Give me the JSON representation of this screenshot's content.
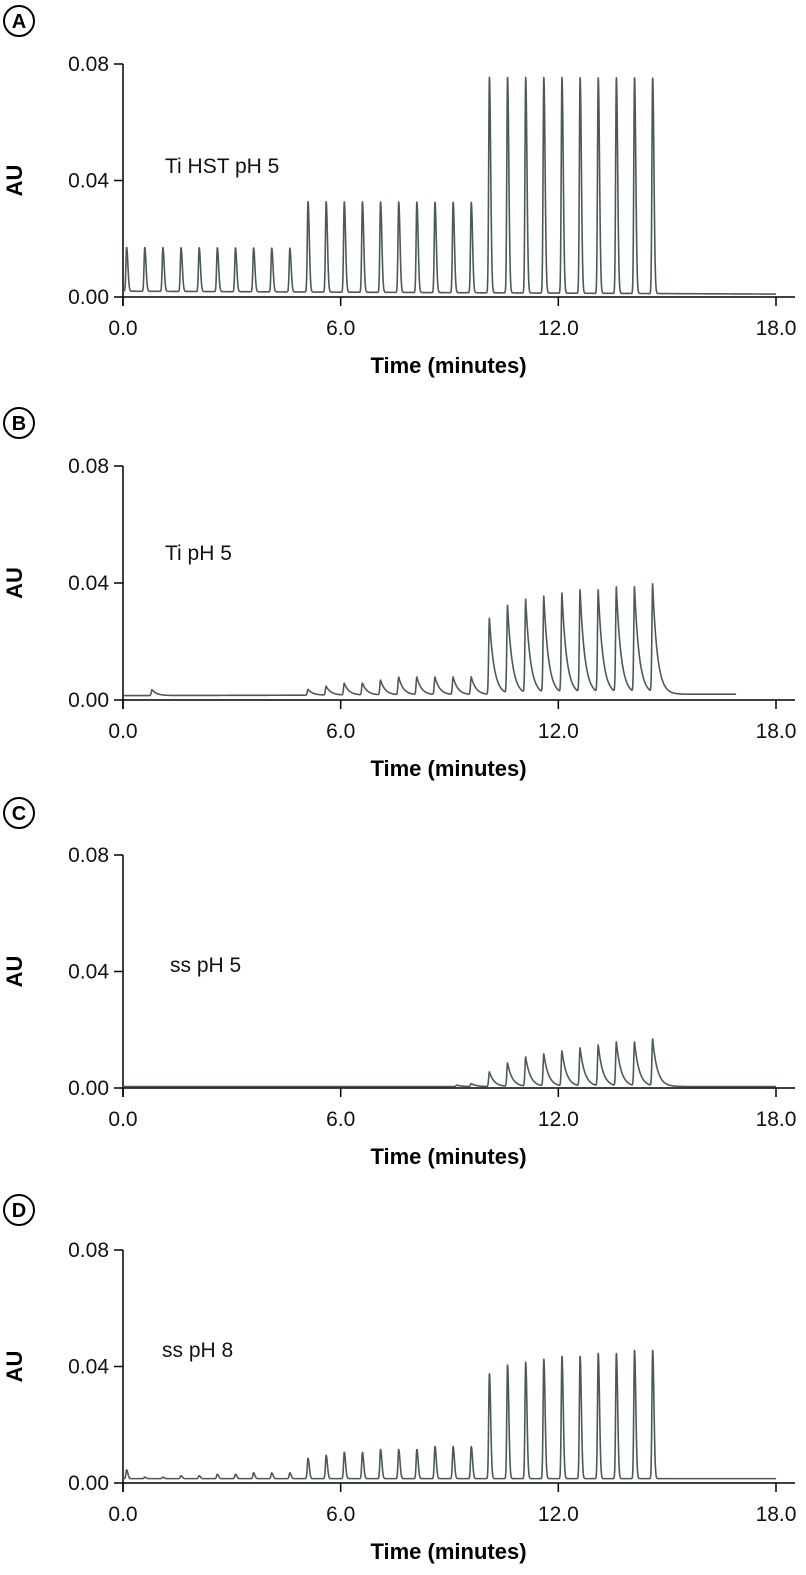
{
  "figure": {
    "colors": {
      "trace": "#4a5a58",
      "axis": "#000000",
      "text": "#111111"
    }
  },
  "chart_data": [
    {
      "type": "line",
      "panel_label": "A",
      "annotation": "Ti HST pH 5",
      "xlabel": "Time (minutes)",
      "ylabel": "AU",
      "xlim": [
        0,
        18
      ],
      "ylim": [
        0,
        0.08
      ],
      "xticks": [
        "0.0",
        "6.0",
        "12.0",
        "18.0"
      ],
      "yticks": [
        "0.00",
        "0.04",
        "0.08"
      ],
      "grid": false,
      "baseline_start": 0.002,
      "baseline_end": 0.001,
      "series": [
        {
          "name": "Ti HST pH 5",
          "peak_shape": "sharp",
          "peaks": [
            {
              "t": 0.1,
              "h": 0.015
            },
            {
              "t": 0.6,
              "h": 0.015
            },
            {
              "t": 1.1,
              "h": 0.015
            },
            {
              "t": 1.6,
              "h": 0.015
            },
            {
              "t": 2.1,
              "h": 0.015
            },
            {
              "t": 2.6,
              "h": 0.015
            },
            {
              "t": 3.1,
              "h": 0.015
            },
            {
              "t": 3.6,
              "h": 0.015
            },
            {
              "t": 4.1,
              "h": 0.015
            },
            {
              "t": 4.6,
              "h": 0.015
            },
            {
              "t": 5.1,
              "h": 0.031
            },
            {
              "t": 5.6,
              "h": 0.031
            },
            {
              "t": 6.1,
              "h": 0.031
            },
            {
              "t": 6.6,
              "h": 0.031
            },
            {
              "t": 7.1,
              "h": 0.031
            },
            {
              "t": 7.6,
              "h": 0.031
            },
            {
              "t": 8.1,
              "h": 0.031
            },
            {
              "t": 8.6,
              "h": 0.031
            },
            {
              "t": 9.1,
              "h": 0.031
            },
            {
              "t": 9.6,
              "h": 0.031
            },
            {
              "t": 10.1,
              "h": 0.074
            },
            {
              "t": 10.6,
              "h": 0.074
            },
            {
              "t": 11.1,
              "h": 0.074
            },
            {
              "t": 11.6,
              "h": 0.074
            },
            {
              "t": 12.1,
              "h": 0.074
            },
            {
              "t": 12.6,
              "h": 0.074
            },
            {
              "t": 13.1,
              "h": 0.074
            },
            {
              "t": 13.6,
              "h": 0.074
            },
            {
              "t": 14.1,
              "h": 0.074
            },
            {
              "t": 14.6,
              "h": 0.074
            }
          ]
        }
      ]
    },
    {
      "type": "line",
      "panel_label": "B",
      "annotation": "Ti pH 5",
      "xlabel": "Time (minutes)",
      "ylabel": "AU",
      "xlim": [
        0,
        18
      ],
      "ylim": [
        0,
        0.08
      ],
      "xticks": [
        "0.0",
        "6.0",
        "12.0",
        "18.0"
      ],
      "yticks": [
        "0.00",
        "0.04",
        "0.08"
      ],
      "grid": false,
      "baseline_start": 0.0015,
      "baseline_end": 0.002,
      "series": [
        {
          "name": "Ti pH 5",
          "peak_shape": "tailing",
          "peaks": [
            {
              "t": 0.8,
              "h": 0.002
            },
            {
              "t": 5.1,
              "h": 0.002
            },
            {
              "t": 5.6,
              "h": 0.003
            },
            {
              "t": 6.1,
              "h": 0.004
            },
            {
              "t": 6.6,
              "h": 0.004
            },
            {
              "t": 7.1,
              "h": 0.005
            },
            {
              "t": 7.6,
              "h": 0.006
            },
            {
              "t": 8.1,
              "h": 0.006
            },
            {
              "t": 8.6,
              "h": 0.006
            },
            {
              "t": 9.1,
              "h": 0.006
            },
            {
              "t": 9.6,
              "h": 0.006
            },
            {
              "t": 10.1,
              "h": 0.026
            },
            {
              "t": 10.6,
              "h": 0.03
            },
            {
              "t": 11.1,
              "h": 0.032
            },
            {
              "t": 11.6,
              "h": 0.033
            },
            {
              "t": 12.1,
              "h": 0.034
            },
            {
              "t": 12.6,
              "h": 0.035
            },
            {
              "t": 13.1,
              "h": 0.035
            },
            {
              "t": 13.6,
              "h": 0.036
            },
            {
              "t": 14.1,
              "h": 0.036
            },
            {
              "t": 14.6,
              "h": 0.037
            }
          ]
        }
      ]
    },
    {
      "type": "line",
      "panel_label": "C",
      "annotation": "ss pH 5",
      "xlabel": "Time (minutes)",
      "ylabel": "AU",
      "xlim": [
        0,
        18
      ],
      "ylim": [
        0,
        0.08
      ],
      "xticks": [
        "0.0",
        "6.0",
        "12.0",
        "18.0"
      ],
      "yticks": [
        "0.00",
        "0.04",
        "0.08"
      ],
      "grid": false,
      "baseline_start": 0.0005,
      "baseline_end": 0.0005,
      "series": [
        {
          "name": "ss pH 5",
          "peak_shape": "tailing",
          "peaks": [
            {
              "t": 9.2,
              "h": 0.0005
            },
            {
              "t": 9.6,
              "h": 0.001
            },
            {
              "t": 10.1,
              "h": 0.005
            },
            {
              "t": 10.6,
              "h": 0.008
            },
            {
              "t": 11.1,
              "h": 0.01
            },
            {
              "t": 11.6,
              "h": 0.011
            },
            {
              "t": 12.1,
              "h": 0.012
            },
            {
              "t": 12.6,
              "h": 0.013
            },
            {
              "t": 13.1,
              "h": 0.014
            },
            {
              "t": 13.6,
              "h": 0.015
            },
            {
              "t": 14.1,
              "h": 0.015
            },
            {
              "t": 14.6,
              "h": 0.016
            }
          ]
        }
      ]
    },
    {
      "type": "line",
      "panel_label": "D",
      "annotation": "ss pH 8",
      "xlabel": "Time (minutes)",
      "ylabel": "AU",
      "xlim": [
        0,
        18
      ],
      "ylim": [
        0,
        0.08
      ],
      "xticks": [
        "0.0",
        "6.0",
        "12.0",
        "18.0"
      ],
      "yticks": [
        "0.00",
        "0.04",
        "0.08"
      ],
      "grid": false,
      "baseline_start": 0.0015,
      "baseline_end": 0.0015,
      "series": [
        {
          "name": "ss pH 8",
          "peak_shape": "sharp",
          "peaks": [
            {
              "t": 0.1,
              "h": 0.003
            },
            {
              "t": 0.6,
              "h": 0.0005
            },
            {
              "t": 1.1,
              "h": 0.0005
            },
            {
              "t": 1.6,
              "h": 0.001
            },
            {
              "t": 2.1,
              "h": 0.001
            },
            {
              "t": 2.6,
              "h": 0.0015
            },
            {
              "t": 3.1,
              "h": 0.0015
            },
            {
              "t": 3.6,
              "h": 0.002
            },
            {
              "t": 4.1,
              "h": 0.002
            },
            {
              "t": 4.6,
              "h": 0.002
            },
            {
              "t": 5.1,
              "h": 0.007
            },
            {
              "t": 5.6,
              "h": 0.008
            },
            {
              "t": 6.1,
              "h": 0.009
            },
            {
              "t": 6.6,
              "h": 0.009
            },
            {
              "t": 7.1,
              "h": 0.01
            },
            {
              "t": 7.6,
              "h": 0.01
            },
            {
              "t": 8.1,
              "h": 0.01
            },
            {
              "t": 8.6,
              "h": 0.011
            },
            {
              "t": 9.1,
              "h": 0.011
            },
            {
              "t": 9.6,
              "h": 0.011
            },
            {
              "t": 10.1,
              "h": 0.036
            },
            {
              "t": 10.6,
              "h": 0.039
            },
            {
              "t": 11.1,
              "h": 0.04
            },
            {
              "t": 11.6,
              "h": 0.041
            },
            {
              "t": 12.1,
              "h": 0.042
            },
            {
              "t": 12.6,
              "h": 0.042
            },
            {
              "t": 13.1,
              "h": 0.043
            },
            {
              "t": 13.6,
              "h": 0.043
            },
            {
              "t": 14.1,
              "h": 0.044
            },
            {
              "t": 14.6,
              "h": 0.044
            }
          ]
        }
      ]
    }
  ]
}
